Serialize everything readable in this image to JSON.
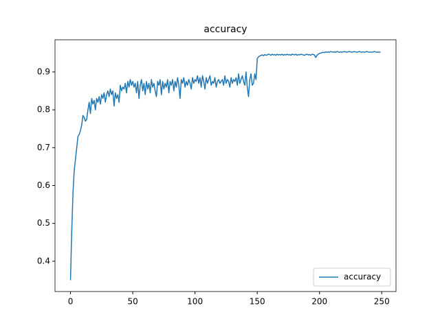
{
  "chart_data": {
    "type": "line",
    "title": "accuracy",
    "x": [
      0,
      1,
      2,
      3,
      4,
      5,
      6,
      7,
      8,
      9,
      10,
      11,
      12,
      13,
      14,
      15,
      16,
      17,
      18,
      19,
      20,
      21,
      22,
      23,
      24,
      25,
      26,
      27,
      28,
      29,
      30,
      31,
      32,
      33,
      34,
      35,
      36,
      37,
      38,
      39,
      40,
      41,
      42,
      43,
      44,
      45,
      46,
      47,
      48,
      49,
      50,
      51,
      52,
      53,
      54,
      55,
      56,
      57,
      58,
      59,
      60,
      61,
      62,
      63,
      64,
      65,
      66,
      67,
      68,
      69,
      70,
      71,
      72,
      73,
      74,
      75,
      76,
      77,
      78,
      79,
      80,
      81,
      82,
      83,
      84,
      85,
      86,
      87,
      88,
      89,
      90,
      91,
      92,
      93,
      94,
      95,
      96,
      97,
      98,
      99,
      100,
      101,
      102,
      103,
      104,
      105,
      106,
      107,
      108,
      109,
      110,
      111,
      112,
      113,
      114,
      115,
      116,
      117,
      118,
      119,
      120,
      121,
      122,
      123,
      124,
      125,
      126,
      127,
      128,
      129,
      130,
      131,
      132,
      133,
      134,
      135,
      136,
      137,
      138,
      139,
      140,
      141,
      142,
      143,
      144,
      145,
      146,
      147,
      148,
      149,
      150,
      151,
      152,
      153,
      154,
      155,
      156,
      157,
      158,
      159,
      160,
      161,
      162,
      163,
      164,
      165,
      166,
      167,
      168,
      169,
      170,
      171,
      172,
      173,
      174,
      175,
      176,
      177,
      178,
      179,
      180,
      181,
      182,
      183,
      184,
      185,
      186,
      187,
      188,
      189,
      190,
      191,
      192,
      193,
      194,
      195,
      196,
      197,
      198,
      199,
      200,
      201,
      202,
      203,
      204,
      205,
      206,
      207,
      208,
      209,
      210,
      211,
      212,
      213,
      214,
      215,
      216,
      217,
      218,
      219,
      220,
      221,
      222,
      223,
      224,
      225,
      226,
      227,
      228,
      229,
      230,
      231,
      232,
      233,
      234,
      235,
      236,
      237,
      238,
      239,
      240,
      241,
      242,
      243,
      244,
      245,
      246,
      247,
      248,
      249
    ],
    "series": [
      {
        "name": "accuracy",
        "color": "#1f77b4",
        "values": [
          0.35,
          0.48,
          0.58,
          0.64,
          0.67,
          0.7,
          0.73,
          0.735,
          0.745,
          0.76,
          0.785,
          0.78,
          0.77,
          0.775,
          0.8,
          0.82,
          0.79,
          0.83,
          0.815,
          0.825,
          0.8,
          0.83,
          0.82,
          0.835,
          0.815,
          0.84,
          0.83,
          0.845,
          0.82,
          0.84,
          0.85,
          0.835,
          0.855,
          0.84,
          0.85,
          0.81,
          0.845,
          0.83,
          0.84,
          0.82,
          0.865,
          0.85,
          0.86,
          0.855,
          0.87,
          0.845,
          0.875,
          0.86,
          0.88,
          0.865,
          0.875,
          0.86,
          0.87,
          0.845,
          0.875,
          0.83,
          0.865,
          0.88,
          0.85,
          0.87,
          0.84,
          0.875,
          0.855,
          0.87,
          0.845,
          0.88,
          0.86,
          0.87,
          0.85,
          0.835,
          0.875,
          0.865,
          0.88,
          0.84,
          0.875,
          0.855,
          0.87,
          0.86,
          0.88,
          0.845,
          0.875,
          0.865,
          0.88,
          0.85,
          0.875,
          0.86,
          0.885,
          0.865,
          0.83,
          0.88,
          0.87,
          0.885,
          0.86,
          0.875,
          0.865,
          0.88,
          0.87,
          0.855,
          0.885,
          0.87,
          0.88,
          0.875,
          0.89,
          0.87,
          0.885,
          0.86,
          0.89,
          0.875,
          0.855,
          0.885,
          0.87,
          0.88,
          0.89,
          0.865,
          0.875,
          0.87,
          0.885,
          0.86,
          0.875,
          0.88,
          0.87,
          0.875,
          0.88,
          0.865,
          0.89,
          0.87,
          0.88,
          0.875,
          0.86,
          0.885,
          0.87,
          0.88,
          0.875,
          0.885,
          0.865,
          0.895,
          0.87,
          0.88,
          0.89,
          0.875,
          0.865,
          0.9,
          0.86,
          0.835,
          0.88,
          0.895,
          0.865,
          0.87,
          0.895,
          0.88,
          0.935,
          0.94,
          0.942,
          0.944,
          0.945,
          0.943,
          0.946,
          0.944,
          0.945,
          0.947,
          0.946,
          0.944,
          0.947,
          0.945,
          0.946,
          0.944,
          0.947,
          0.945,
          0.946,
          0.945,
          0.947,
          0.944,
          0.946,
          0.945,
          0.947,
          0.945,
          0.946,
          0.944,
          0.947,
          0.946,
          0.945,
          0.947,
          0.944,
          0.946,
          0.945,
          0.947,
          0.946,
          0.945,
          0.944,
          0.946,
          0.947,
          0.945,
          0.946,
          0.944,
          0.947,
          0.946,
          0.945,
          0.938,
          0.944,
          0.947,
          0.949,
          0.95,
          0.951,
          0.952,
          0.951,
          0.953,
          0.952,
          0.953,
          0.952,
          0.954,
          0.953,
          0.952,
          0.953,
          0.952,
          0.954,
          0.953,
          0.952,
          0.953,
          0.952,
          0.953,
          0.954,
          0.953,
          0.952,
          0.953,
          0.954,
          0.953,
          0.952,
          0.953,
          0.954,
          0.953,
          0.952,
          0.953,
          0.954,
          0.953,
          0.952,
          0.953,
          0.952,
          0.953,
          0.954,
          0.953,
          0.952,
          0.953,
          0.952,
          0.953,
          0.954,
          0.953,
          0.952,
          0.953,
          0.952,
          0.953
        ]
      }
    ],
    "xlim": [
      -12.45,
      261.45
    ],
    "ylim": [
      0.32,
      0.985
    ],
    "xticks": [
      0,
      50,
      100,
      150,
      200,
      250
    ],
    "yticks": [
      0.4,
      0.5,
      0.6,
      0.7,
      0.8,
      0.9
    ],
    "legend": "lower right"
  }
}
